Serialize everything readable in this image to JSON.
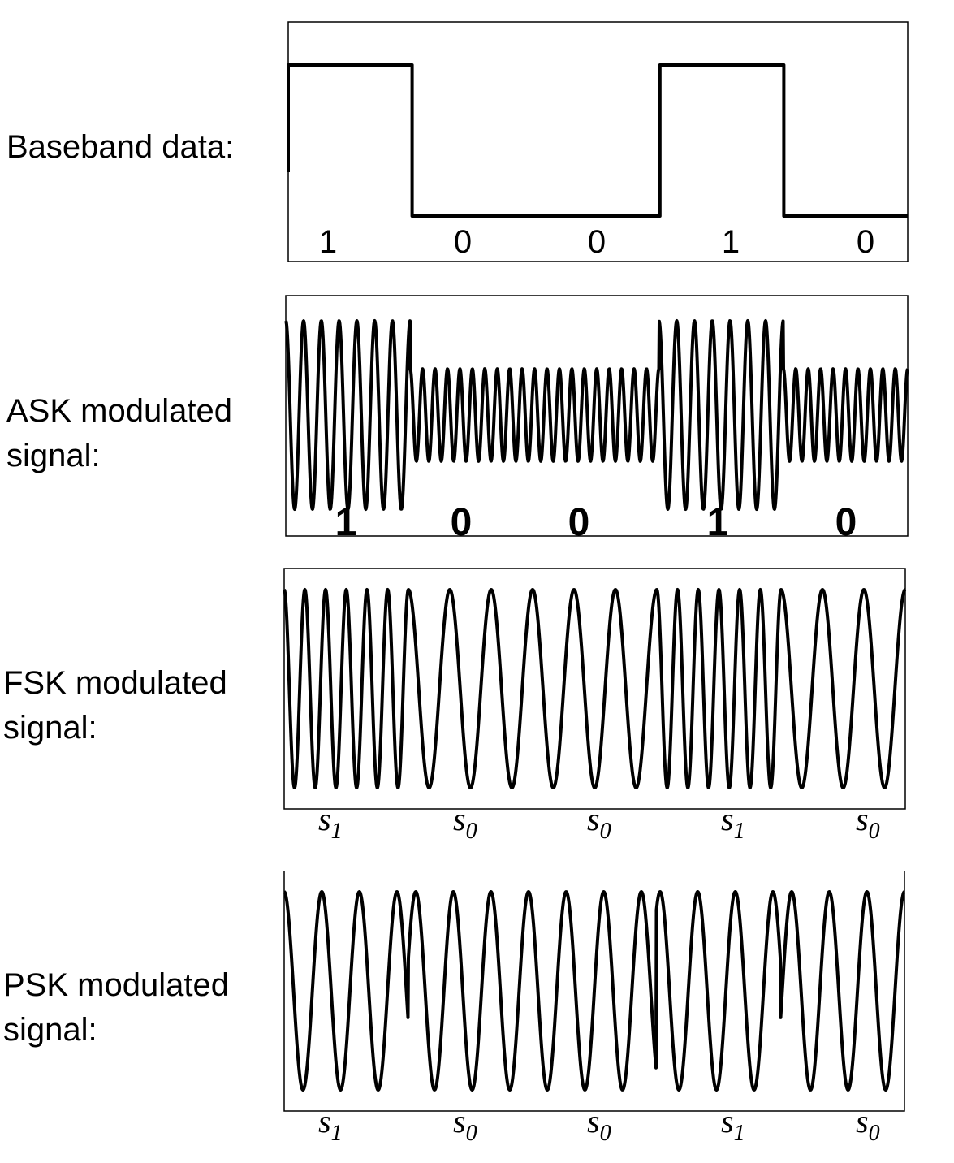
{
  "panels": [
    {
      "label_lines": [
        "Baseband data:"
      ],
      "bits": [
        "1",
        "0",
        "0",
        "1",
        "0"
      ]
    },
    {
      "label_lines": [
        "ASK modulated",
        "signal:"
      ],
      "bits": [
        "1",
        "0",
        "0",
        "1",
        "0"
      ]
    },
    {
      "label_lines": [
        "FSK modulated",
        "signal:"
      ],
      "symbols": [
        {
          "base": "s",
          "sub": "1"
        },
        {
          "base": "s",
          "sub": "0"
        },
        {
          "base": "s",
          "sub": "0"
        },
        {
          "base": "s",
          "sub": "1"
        },
        {
          "base": "s",
          "sub": "0"
        }
      ]
    },
    {
      "label_lines": [
        "PSK modulated",
        "signal:"
      ],
      "symbols": [
        {
          "base": "s",
          "sub": "1"
        },
        {
          "base": "s",
          "sub": "0"
        },
        {
          "base": "s",
          "sub": "0"
        },
        {
          "base": "s",
          "sub": "1"
        },
        {
          "base": "s",
          "sub": "0"
        }
      ]
    }
  ]
}
